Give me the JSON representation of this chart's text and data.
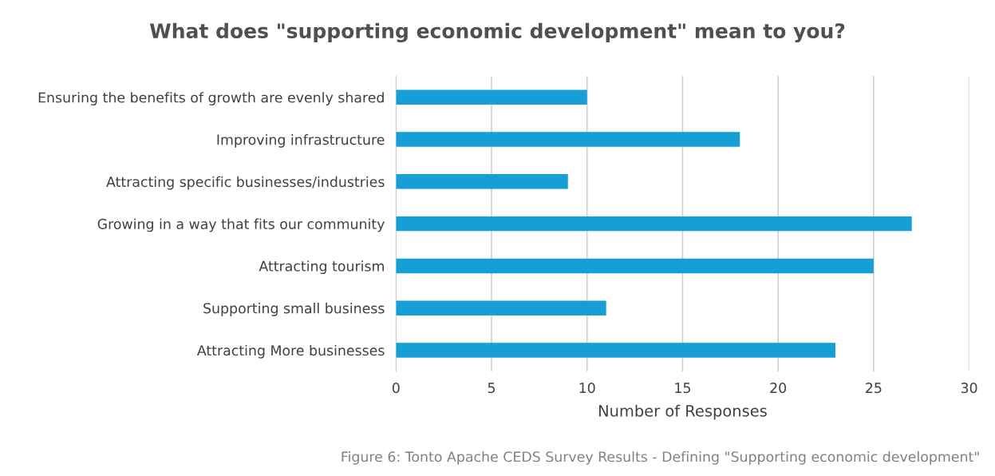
{
  "chart_data": {
    "type": "bar",
    "orientation": "horizontal",
    "title": "What does \"supporting economic development\" mean to you?",
    "xlabel": "Number of Responses",
    "categories": [
      "Ensuring the benefits of growth are evenly shared",
      "Improving infrastructure",
      "Attracting specific businesses/industries",
      "Growing in a way that fits our community",
      "Attracting tourism",
      "Supporting small business",
      "Attracting More businesses"
    ],
    "values": [
      10,
      18,
      9,
      27,
      25,
      11,
      23
    ],
    "color": "#159fd6",
    "xlim": [
      0,
      30
    ],
    "xticks": [
      0,
      5,
      10,
      15,
      20,
      25,
      30
    ],
    "grid": "x",
    "legend": false,
    "annotations": [
      "Figure 6: Tonto Apache CEDS Survey Results - Defining \"Supporting economic development\""
    ]
  }
}
